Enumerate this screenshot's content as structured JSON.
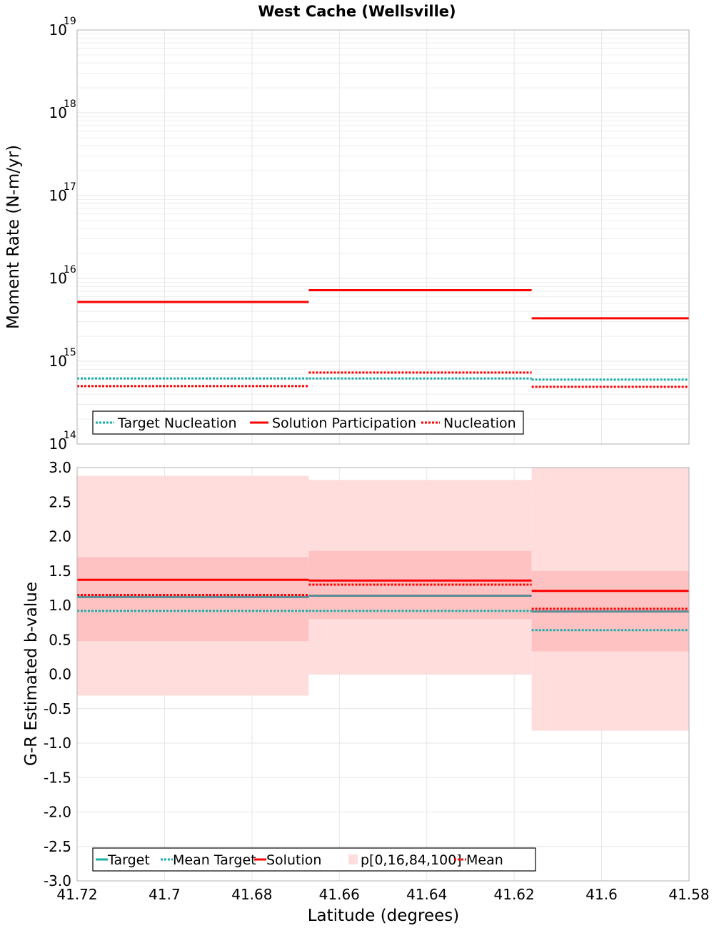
{
  "title": "West Cache (Wellsville)",
  "colors": {
    "target": "#1aaea6",
    "solution": "#ff0000",
    "band_outer": "#ffdddd",
    "band_inner": "#ffc2c2",
    "target_solid": "#5a8a96",
    "grid": "#e6e6e6",
    "frame": "#b0b0b0"
  },
  "chart_data": [
    {
      "type": "line",
      "subtype": "step",
      "ylabel": "Moment Rate (N-m/yr)",
      "yscale": "log",
      "ylim": [
        100000000000000.0,
        1e+19
      ],
      "xlim": [
        41.72,
        41.58
      ],
      "x_reversed": true,
      "grid": true,
      "ytick_labels": [
        {
          "base": "10",
          "exp": "14",
          "value": 100000000000000.0
        },
        {
          "base": "10",
          "exp": "15",
          "value": 1000000000000000.0
        },
        {
          "base": "10",
          "exp": "16",
          "value": 1e+16
        },
        {
          "base": "10",
          "exp": "17",
          "value": 1e+17
        },
        {
          "base": "10",
          "exp": "18",
          "value": 1e+18
        },
        {
          "base": "10",
          "exp": "19",
          "value": 1e+19
        }
      ],
      "segments": [
        {
          "x0": 41.72,
          "x1": 41.667
        },
        {
          "x0": 41.667,
          "x1": 41.616
        },
        {
          "x0": 41.616,
          "x1": 41.58
        }
      ],
      "series": [
        {
          "name": "Target Nucleation",
          "style": "dotted",
          "color": "#1aaea6",
          "values": [
            620000000000000.0,
            620000000000000.0,
            600000000000000.0
          ]
        },
        {
          "name": "Solution Participation",
          "style": "solid",
          "color": "#ff0000",
          "values": [
            5200000000000000.0,
            7200000000000000.0,
            3300000000000000.0
          ]
        },
        {
          "name": "Nucleation",
          "style": "dotted",
          "color": "#ff0000",
          "values": [
            500000000000000.0,
            730000000000000.0,
            490000000000000.0
          ]
        }
      ],
      "legend": {
        "location": "bottom-left",
        "entries": [
          {
            "label": "Target Nucleation",
            "style": "dotted",
            "color": "#1aaea6"
          },
          {
            "label": "Solution Participation",
            "style": "solid",
            "color": "#ff0000"
          },
          {
            "label": "Nucleation",
            "style": "dotted",
            "color": "#ff0000"
          }
        ]
      }
    },
    {
      "type": "line",
      "subtype": "step-with-bands",
      "xlabel": "Latitude (degrees)",
      "ylabel": "G-R Estimated b-value",
      "ylim": [
        -3.0,
        3.0
      ],
      "xlim": [
        41.72,
        41.58
      ],
      "x_reversed": true,
      "grid": true,
      "xtick_labels": [
        "41.72",
        "41.7",
        "41.68",
        "41.66",
        "41.64",
        "41.62",
        "41.6",
        "41.58"
      ],
      "xtick_values": [
        41.72,
        41.7,
        41.68,
        41.66,
        41.64,
        41.62,
        41.6,
        41.58
      ],
      "ytick_labels": [
        "-3.0",
        "-2.5",
        "-2.0",
        "-1.5",
        "-1.0",
        "-0.5",
        "0.0",
        "0.5",
        "1.0",
        "1.5",
        "2.0",
        "2.5",
        "3.0"
      ],
      "ytick_values": [
        -3.0,
        -2.5,
        -2.0,
        -1.5,
        -1.0,
        -0.5,
        0.0,
        0.5,
        1.0,
        1.5,
        2.0,
        2.5,
        3.0
      ],
      "segments": [
        {
          "x0": 41.72,
          "x1": 41.667
        },
        {
          "x0": 41.667,
          "x1": 41.616
        },
        {
          "x0": 41.616,
          "x1": 41.58
        }
      ],
      "bands": {
        "name": "p[0,16,84,100]",
        "p0": [
          -0.31,
          0.0,
          -0.82
        ],
        "p16": [
          0.48,
          0.8,
          0.33
        ],
        "p84": [
          1.7,
          1.79,
          1.5
        ],
        "p100": [
          2.88,
          2.82,
          3.0
        ]
      },
      "series": [
        {
          "name": "Target",
          "style": "solid",
          "color": "#5a8a96",
          "values": [
            1.12,
            1.14,
            0.91
          ]
        },
        {
          "name": "Mean Target",
          "style": "dotted",
          "color": "#1aaea6",
          "values": [
            0.92,
            0.92,
            0.64
          ]
        },
        {
          "name": "Solution",
          "style": "solid",
          "color": "#ff0000",
          "values": [
            1.37,
            1.36,
            1.21
          ]
        },
        {
          "name": "Mean",
          "style": "dotted",
          "color": "#ff0000",
          "values": [
            1.15,
            1.3,
            0.95
          ]
        }
      ],
      "legend": {
        "location": "bottom-left",
        "entries": [
          {
            "label": "Target",
            "style": "solid",
            "color": "#1aaea6"
          },
          {
            "label": "Mean Target",
            "style": "dotted",
            "color": "#1aaea6"
          },
          {
            "label": "Solution",
            "style": "solid",
            "color": "#ff0000"
          },
          {
            "label": "p[0,16,84,100]",
            "style": "patch",
            "color": "#ffdddd"
          },
          {
            "label": "Mean",
            "style": "dotted",
            "color": "#ff0000"
          }
        ]
      }
    }
  ]
}
